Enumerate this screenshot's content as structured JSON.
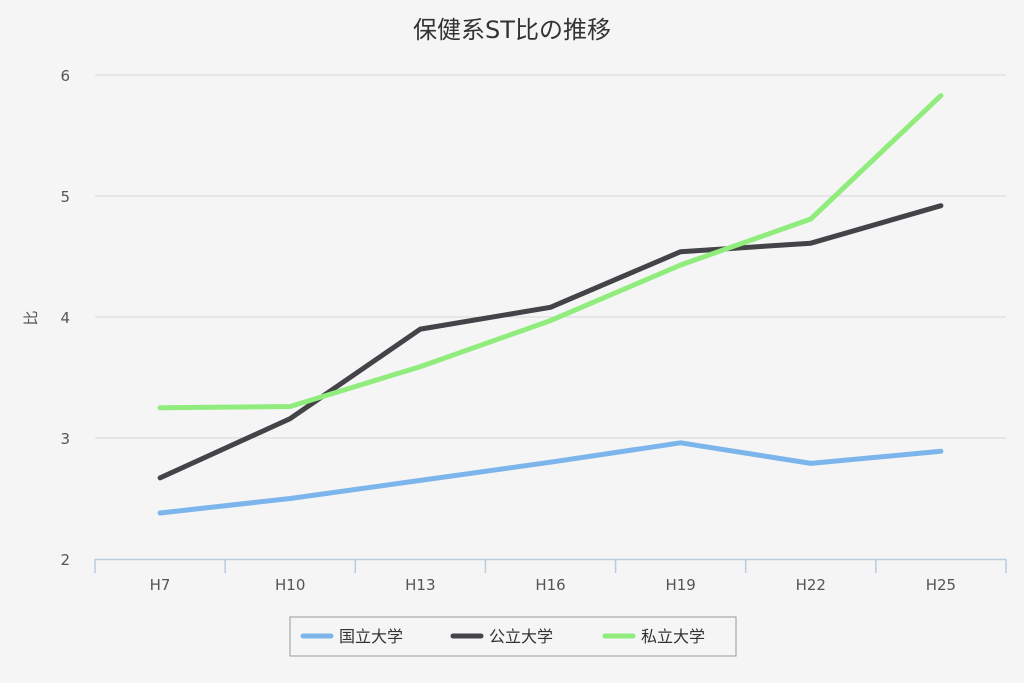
{
  "chart_data": {
    "type": "line",
    "title": "保健系ST比の推移",
    "xlabel": "",
    "ylabel": "比",
    "categories": [
      "H7",
      "H10",
      "H13",
      "H16",
      "H19",
      "H22",
      "H25"
    ],
    "ylim": [
      2,
      6
    ],
    "yticks": [
      "2",
      "3",
      "4",
      "5",
      "6"
    ],
    "grid": true,
    "legend_position": "bottom",
    "series": [
      {
        "name": "国立大学",
        "color": "#7cb5ec",
        "values": [
          2.38,
          2.5,
          2.65,
          2.8,
          2.96,
          2.79,
          2.89
        ]
      },
      {
        "name": "公立大学",
        "color": "#434348",
        "values": [
          2.67,
          3.16,
          3.9,
          4.08,
          4.54,
          4.61,
          4.92
        ]
      },
      {
        "name": "私立大学",
        "color": "#90ed7d",
        "values": [
          3.25,
          3.26,
          3.59,
          3.97,
          4.43,
          4.81,
          5.83
        ]
      }
    ]
  }
}
